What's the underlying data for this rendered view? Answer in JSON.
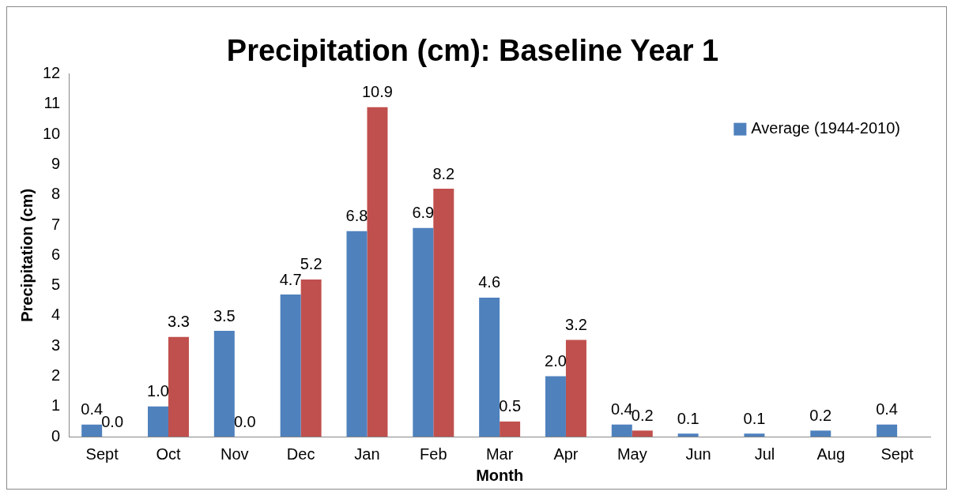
{
  "chart_data": {
    "type": "bar",
    "title": "Precipitation (cm): Baseline Year 1",
    "xlabel": "Month",
    "ylabel": "Precipitation (cm)",
    "categories": [
      "Sept",
      "Oct",
      "Nov",
      "Dec",
      "Jan",
      "Feb",
      "Mar",
      "Apr",
      "May",
      "Jun",
      "Jul",
      "Aug",
      "Sept"
    ],
    "series": [
      {
        "name": "Average (1944-2010)",
        "color": "#4f81bd",
        "values": [
          0.4,
          1,
          3.5,
          4.7,
          6.8,
          6.9,
          4.6,
          2,
          0.4,
          0.1,
          0.1,
          0.2,
          0.4
        ],
        "value_labels": [
          "0.4",
          "1.0",
          "3.5",
          "4.7",
          "6.8",
          "6.9",
          "4.6",
          "2.0",
          "0.4",
          "0.1",
          "0.1",
          "0.2",
          "0.4"
        ]
      },
      {
        "color": "#c0504d",
        "values": [
          0,
          3.3,
          0,
          5.2,
          10.9,
          8.2,
          0.5,
          3.2,
          0.2,
          null,
          null,
          null,
          null
        ],
        "value_labels": [
          "0.0",
          "3.3",
          "0.0",
          "5.2",
          "10.9",
          "8.2",
          "0.5",
          "3.2",
          "0.2",
          null,
          null,
          null,
          null
        ]
      }
    ],
    "ylim": [
      0,
      12
    ],
    "yticks": [
      0,
      1,
      2,
      3,
      4,
      5,
      6,
      7,
      8,
      9,
      10,
      11,
      12
    ],
    "grid": false,
    "legend": "top right"
  }
}
